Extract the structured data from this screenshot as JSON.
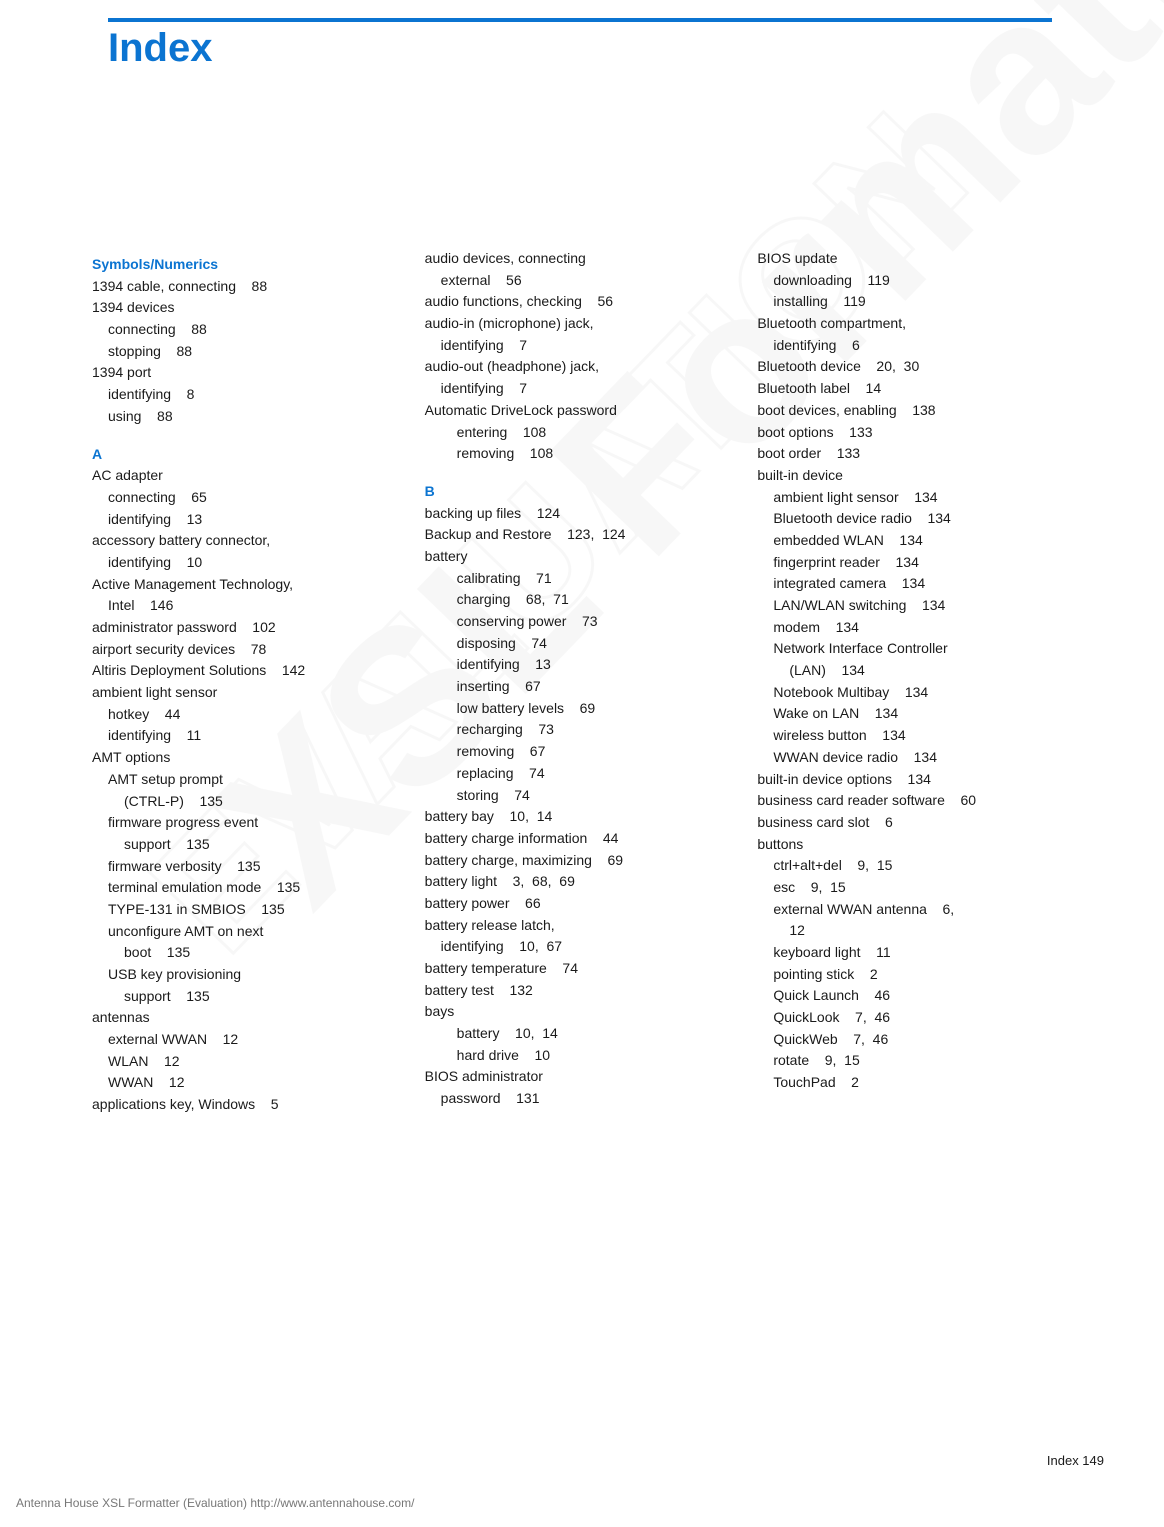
{
  "title": "Index",
  "page_label": "Index   149",
  "footer": "Antenna House XSL Formatter (Evaluation)  http://www.antennahouse.com/",
  "watermark_lines": [
    "XSL Formatter",
    "EVALUATION"
  ],
  "colors": {
    "accent": "#0b74d1",
    "text": "#1a1a1a",
    "footer": "#777777",
    "watermark": "#d0d0d0"
  },
  "col1": [
    {
      "t": "head",
      "v": "Symbols/Numerics"
    },
    {
      "t": "e",
      "v": "1394 cable, connecting    88"
    },
    {
      "t": "e",
      "v": "1394 devices"
    },
    {
      "t": "e",
      "v": "connecting    88",
      "i": 1
    },
    {
      "t": "e",
      "v": "stopping    88",
      "i": 1
    },
    {
      "t": "e",
      "v": "1394 port"
    },
    {
      "t": "e",
      "v": "identifying    8",
      "i": 1
    },
    {
      "t": "e",
      "v": "using    88",
      "i": 1
    },
    {
      "t": "gap"
    },
    {
      "t": "head",
      "v": "A"
    },
    {
      "t": "e",
      "v": "AC adapter"
    },
    {
      "t": "e",
      "v": "connecting    65",
      "i": 1
    },
    {
      "t": "e",
      "v": "identifying    13",
      "i": 1
    },
    {
      "t": "e",
      "v": "accessory battery connector,"
    },
    {
      "t": "e",
      "v": "identifying    10",
      "i": 1
    },
    {
      "t": "e",
      "v": "Active Management Technology,"
    },
    {
      "t": "e",
      "v": "Intel    146",
      "i": 1
    },
    {
      "t": "e",
      "v": "administrator password    102"
    },
    {
      "t": "e",
      "v": "airport security devices    78"
    },
    {
      "t": "e",
      "v": "Altiris Deployment Solutions    142"
    },
    {
      "t": "e",
      "v": "ambient light sensor"
    },
    {
      "t": "e",
      "v": "hotkey    44",
      "i": 1
    },
    {
      "t": "e",
      "v": "identifying    11",
      "i": 1
    },
    {
      "t": "e",
      "v": "AMT options"
    },
    {
      "t": "e",
      "v": "AMT setup prompt",
      "i": 1
    },
    {
      "t": "e",
      "v": "(CTRL-P)    135",
      "i": 2
    },
    {
      "t": "e",
      "v": "firmware progress event",
      "i": 1
    },
    {
      "t": "e",
      "v": "support    135",
      "i": 2
    },
    {
      "t": "e",
      "v": "firmware verbosity    135",
      "i": 1
    },
    {
      "t": "e",
      "v": "terminal emulation mode    135",
      "i": 1
    },
    {
      "t": "e",
      "v": "TYPE-131 in SMBIOS    135",
      "i": 1
    },
    {
      "t": "e",
      "v": "unconfigure AMT on next",
      "i": 1
    },
    {
      "t": "e",
      "v": "boot    135",
      "i": 2
    },
    {
      "t": "e",
      "v": "USB key provisioning",
      "i": 1
    },
    {
      "t": "e",
      "v": "support    135",
      "i": 2
    },
    {
      "t": "e",
      "v": "antennas"
    },
    {
      "t": "e",
      "v": "external WWAN    12",
      "i": 1
    },
    {
      "t": "e",
      "v": "WLAN    12",
      "i": 1
    },
    {
      "t": "e",
      "v": "WWAN    12",
      "i": 1
    },
    {
      "t": "e",
      "v": "applications key, Windows    5"
    }
  ],
  "col2": [
    {
      "t": "e",
      "v": "audio devices, connecting"
    },
    {
      "t": "e",
      "v": "external    56",
      "i": 1
    },
    {
      "t": "e",
      "v": "audio functions, checking    56"
    },
    {
      "t": "e",
      "v": "audio-in (microphone) jack,"
    },
    {
      "t": "e",
      "v": "identifying    7",
      "i": 1
    },
    {
      "t": "e",
      "v": "audio-out (headphone) jack,"
    },
    {
      "t": "e",
      "v": "identifying    7",
      "i": 1
    },
    {
      "t": "e",
      "v": "Automatic DriveLock password"
    },
    {
      "t": "e",
      "v": "entering    108",
      "i": 2
    },
    {
      "t": "e",
      "v": "removing    108",
      "i": 2
    },
    {
      "t": "gap"
    },
    {
      "t": "head",
      "v": "B"
    },
    {
      "t": "e",
      "v": "backing up files    124"
    },
    {
      "t": "e",
      "v": "Backup and Restore    123,  124"
    },
    {
      "t": "e",
      "v": "battery"
    },
    {
      "t": "e",
      "v": "calibrating    71",
      "i": 2
    },
    {
      "t": "e",
      "v": "charging    68,  71",
      "i": 2
    },
    {
      "t": "e",
      "v": "conserving power    73",
      "i": 2
    },
    {
      "t": "e",
      "v": "disposing    74",
      "i": 2
    },
    {
      "t": "e",
      "v": "identifying    13",
      "i": 2
    },
    {
      "t": "e",
      "v": "inserting    67",
      "i": 2
    },
    {
      "t": "e",
      "v": "low battery levels    69",
      "i": 2
    },
    {
      "t": "e",
      "v": "recharging    73",
      "i": 2
    },
    {
      "t": "e",
      "v": "removing    67",
      "i": 2
    },
    {
      "t": "e",
      "v": "replacing    74",
      "i": 2
    },
    {
      "t": "e",
      "v": "storing    74",
      "i": 2
    },
    {
      "t": "e",
      "v": "battery bay    10,  14"
    },
    {
      "t": "e",
      "v": "battery charge information    44"
    },
    {
      "t": "e",
      "v": "battery charge, maximizing    69"
    },
    {
      "t": "e",
      "v": "battery light    3,  68,  69"
    },
    {
      "t": "e",
      "v": "battery power    66"
    },
    {
      "t": "e",
      "v": "battery release latch,"
    },
    {
      "t": "e",
      "v": "identifying    10,  67",
      "i": 1
    },
    {
      "t": "e",
      "v": "battery temperature    74"
    },
    {
      "t": "e",
      "v": "battery test    132"
    },
    {
      "t": "e",
      "v": "bays"
    },
    {
      "t": "e",
      "v": "battery    10,  14",
      "i": 2
    },
    {
      "t": "e",
      "v": "hard drive    10",
      "i": 2
    },
    {
      "t": "e",
      "v": "BIOS administrator"
    },
    {
      "t": "e",
      "v": "password    131",
      "i": 1
    }
  ],
  "col3": [
    {
      "t": "e",
      "v": "BIOS update"
    },
    {
      "t": "e",
      "v": "downloading    119",
      "i": 1
    },
    {
      "t": "e",
      "v": "installing    119",
      "i": 1
    },
    {
      "t": "e",
      "v": "Bluetooth compartment,"
    },
    {
      "t": "e",
      "v": "identifying    6",
      "i": 1
    },
    {
      "t": "e",
      "v": "Bluetooth device    20,  30"
    },
    {
      "t": "e",
      "v": "Bluetooth label    14"
    },
    {
      "t": "e",
      "v": "boot devices, enabling    138"
    },
    {
      "t": "e",
      "v": "boot options    133"
    },
    {
      "t": "e",
      "v": "boot order    133"
    },
    {
      "t": "e",
      "v": "built-in device"
    },
    {
      "t": "e",
      "v": "ambient light sensor    134",
      "i": 1
    },
    {
      "t": "e",
      "v": "Bluetooth device radio    134",
      "i": 1
    },
    {
      "t": "e",
      "v": "embedded WLAN    134",
      "i": 1
    },
    {
      "t": "e",
      "v": "fingerprint reader    134",
      "i": 1
    },
    {
      "t": "e",
      "v": "integrated camera    134",
      "i": 1
    },
    {
      "t": "e",
      "v": "LAN/WLAN switching    134",
      "i": 1
    },
    {
      "t": "e",
      "v": "modem    134",
      "i": 1
    },
    {
      "t": "e",
      "v": "Network Interface Controller",
      "i": 1
    },
    {
      "t": "e",
      "v": "(LAN)    134",
      "i": 2
    },
    {
      "t": "e",
      "v": "Notebook Multibay    134",
      "i": 1
    },
    {
      "t": "e",
      "v": "Wake on LAN    134",
      "i": 1
    },
    {
      "t": "e",
      "v": "wireless button    134",
      "i": 1
    },
    {
      "t": "e",
      "v": "WWAN device radio    134",
      "i": 1
    },
    {
      "t": "e",
      "v": "built-in device options    134"
    },
    {
      "t": "e",
      "v": "business card reader software    60"
    },
    {
      "t": "e",
      "v": "business card slot    6"
    },
    {
      "t": "e",
      "v": "buttons"
    },
    {
      "t": "e",
      "v": "ctrl+alt+del    9,  15",
      "i": 1
    },
    {
      "t": "e",
      "v": "esc    9,  15",
      "i": 1
    },
    {
      "t": "e",
      "v": "external WWAN antenna    6,",
      "i": 1
    },
    {
      "t": "e",
      "v": "12",
      "i": 2
    },
    {
      "t": "e",
      "v": "keyboard light    11",
      "i": 1
    },
    {
      "t": "e",
      "v": "pointing stick    2",
      "i": 1
    },
    {
      "t": "e",
      "v": "Quick Launch    46",
      "i": 1
    },
    {
      "t": "e",
      "v": "QuickLook    7,  46",
      "i": 1
    },
    {
      "t": "e",
      "v": "QuickWeb    7,  46",
      "i": 1
    },
    {
      "t": "e",
      "v": "rotate    9,  15",
      "i": 1
    },
    {
      "t": "e",
      "v": "TouchPad    2",
      "i": 1
    }
  ]
}
